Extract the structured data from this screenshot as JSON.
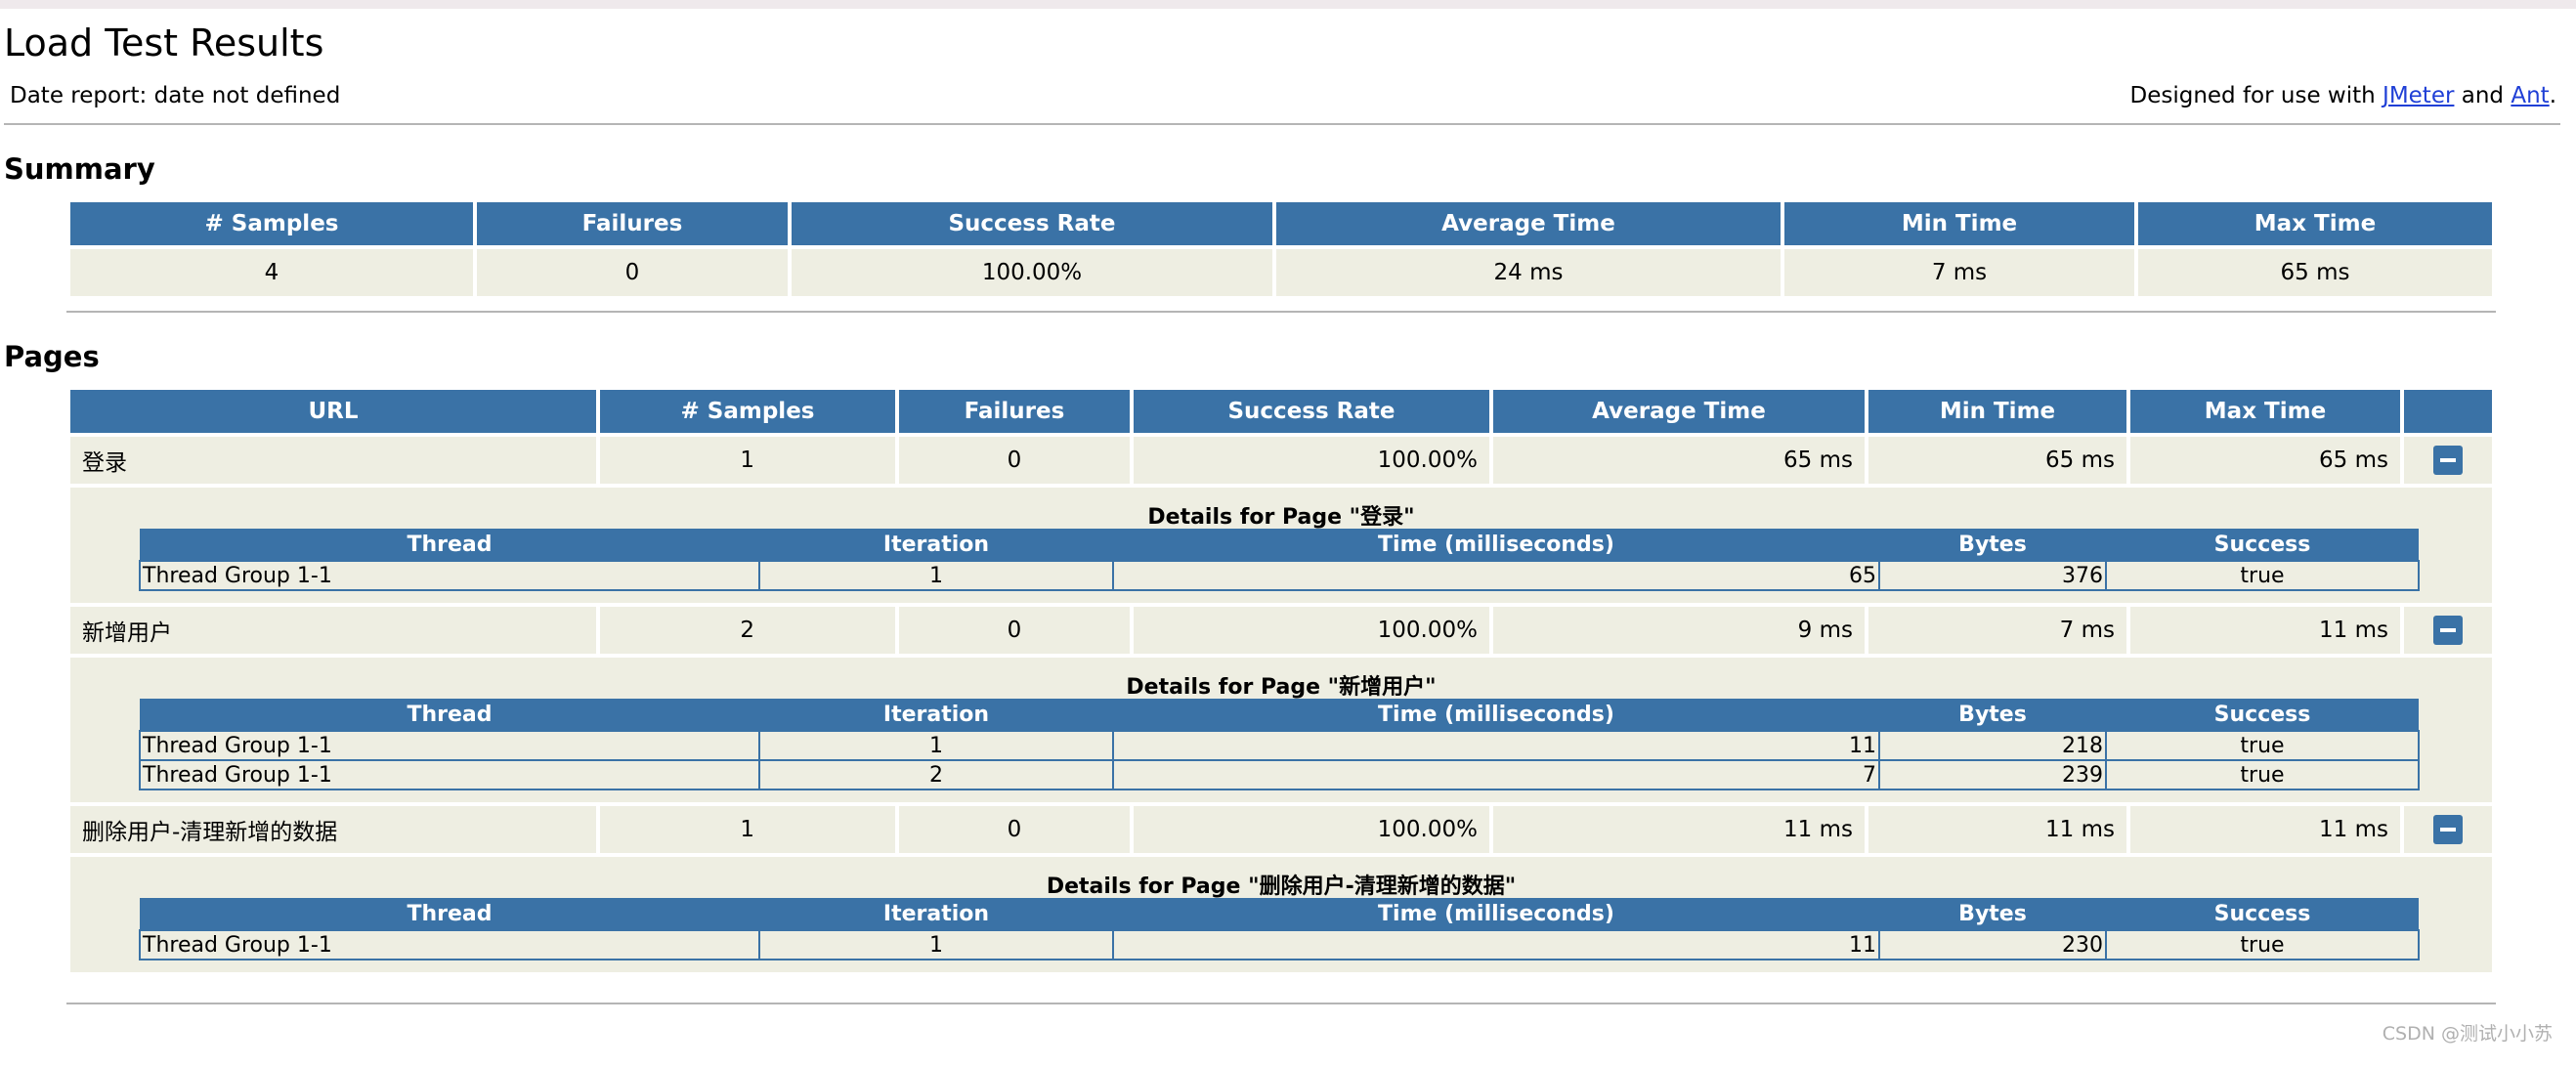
{
  "header": {
    "title": "Load Test Results",
    "date_report": "Date report: date not defined",
    "designed_prefix": "Designed for use with ",
    "jmeter_link": "JMeter",
    "and_text": " and ",
    "ant_link": "Ant",
    "period": "."
  },
  "summary": {
    "heading": "Summary",
    "columns": [
      "# Samples",
      "Failures",
      "Success Rate",
      "Average Time",
      "Min Time",
      "Max Time"
    ],
    "row": [
      "4",
      "0",
      "100.00%",
      "24 ms",
      "7 ms",
      "65 ms"
    ]
  },
  "pages": {
    "heading": "Pages",
    "columns": [
      "URL",
      "# Samples",
      "Failures",
      "Success Rate",
      "Average Time",
      "Min Time",
      "Max Time"
    ],
    "detail_columns": [
      "Thread",
      "Iteration",
      "Time (milliseconds)",
      "Bytes",
      "Success"
    ],
    "rows": [
      {
        "url": "登录",
        "samples": "1",
        "failures": "0",
        "success_rate": "100.00%",
        "avg": "65 ms",
        "min": "65 ms",
        "max": "65 ms",
        "detail_title": "Details for Page \"登录\"",
        "details": [
          {
            "thread": "Thread Group 1-1",
            "iteration": "1",
            "time": "65",
            "bytes": "376",
            "success": "true"
          }
        ]
      },
      {
        "url": "新增用户",
        "samples": "2",
        "failures": "0",
        "success_rate": "100.00%",
        "avg": "9 ms",
        "min": "7 ms",
        "max": "11 ms",
        "detail_title": "Details for Page \"新增用户\"",
        "details": [
          {
            "thread": "Thread Group 1-1",
            "iteration": "1",
            "time": "11",
            "bytes": "218",
            "success": "true"
          },
          {
            "thread": "Thread Group 1-1",
            "iteration": "2",
            "time": "7",
            "bytes": "239",
            "success": "true"
          }
        ]
      },
      {
        "url": "删除用户-清理新增的数据",
        "samples": "1",
        "failures": "0",
        "success_rate": "100.00%",
        "avg": "11 ms",
        "min": "11 ms",
        "max": "11 ms",
        "detail_title": "Details for Page \"删除用户-清理新增的数据\"",
        "details": [
          {
            "thread": "Thread Group 1-1",
            "iteration": "1",
            "time": "11",
            "bytes": "230",
            "success": "true"
          }
        ]
      }
    ]
  },
  "watermark": "CSDN @测试小小苏",
  "icons": {
    "collapse": "minus-collapse-icon"
  },
  "colors": {
    "header_blue": "#3a72a6",
    "cell_bg": "#eeeee2",
    "link": "#1f3fd6"
  }
}
